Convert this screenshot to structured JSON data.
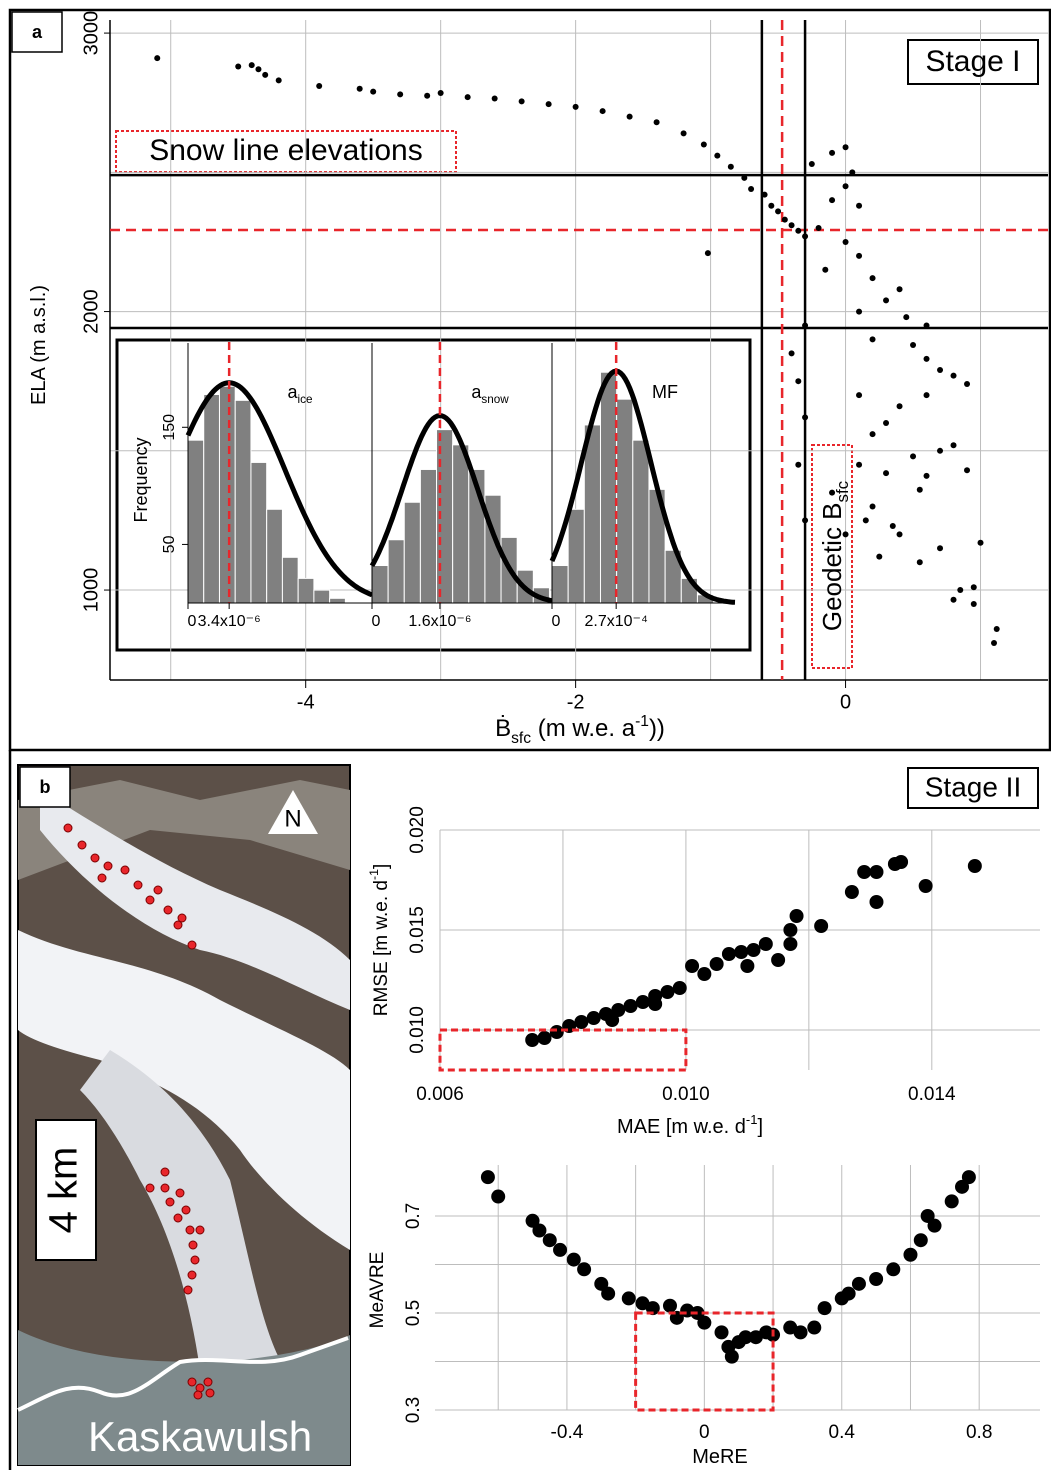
{
  "panel_labels": [
    "a",
    "b"
  ],
  "map": {
    "north": "N",
    "scale": "4 km",
    "glacier": "Kaskawulsh"
  },
  "chart_data": [
    {
      "type": "scatter",
      "color": "#000000",
      "x": [
        -5.1,
        -4.5,
        -4.4,
        -4.35,
        -4.3,
        -4.2,
        -3.9,
        -3.6,
        -3.5,
        -3.3,
        -3.1,
        -3.0,
        -2.8,
        -2.6,
        -2.4,
        -2.2,
        -2.0,
        -1.8,
        -1.6,
        -1.4,
        -1.2,
        -1.05,
        -0.95,
        -0.85,
        -0.75,
        -0.7,
        -0.6,
        -0.55,
        -0.5,
        -0.45,
        -0.4,
        -0.35,
        -0.3,
        -1.02,
        -0.25,
        -0.1,
        0,
        0.05,
        0,
        -0.1,
        0.1,
        -0.2,
        0,
        0.1,
        -0.15,
        0.2,
        0.4,
        0.3,
        0.1,
        0.45,
        -0.3,
        0.6,
        -0.4,
        0.2,
        0.5,
        0.6,
        0.7,
        0.8,
        0.9,
        0.6,
        -0.35,
        -0.3,
        0.4,
        0.2,
        0.1,
        0.3,
        0.5,
        0.6,
        0.7,
        0.8,
        0.9,
        0.55,
        0.2,
        0.15,
        0.35,
        0.4,
        -0.3,
        0,
        0.25,
        0.7,
        0.55,
        1.0,
        0.85,
        0.95,
        0.8,
        0.95,
        1.1,
        1.12,
        -0.35,
        -0.1,
        0.3,
        0.1
      ],
      "values": [
        2910,
        2880,
        2885,
        2870,
        2850,
        2830,
        2810,
        2800,
        2790,
        2780,
        2775,
        2785,
        2770,
        2765,
        2755,
        2745,
        2735,
        2720,
        2700,
        2680,
        2640,
        2600,
        2560,
        2520,
        2480,
        2440,
        2420,
        2380,
        2360,
        2330,
        2310,
        2290,
        2270,
        2210,
        2530,
        2570,
        2590,
        2500,
        2450,
        2400,
        2380,
        2300,
        2250,
        2200,
        2150,
        2120,
        2080,
        2040,
        2000,
        1980,
        1950,
        1950,
        1850,
        1900,
        1880,
        1830,
        1790,
        1770,
        1740,
        1700,
        1750,
        1620,
        1660,
        1560,
        1450,
        1420,
        1480,
        1410,
        1500,
        1520,
        1430,
        1360,
        1300,
        1250,
        1230,
        1200,
        1250,
        1200,
        1120,
        1150,
        1100,
        1170,
        1000,
        1010,
        965,
        950,
        810,
        860,
        1450,
        1350,
        1600,
        1700
      ],
      "xlim": [
        -5.45,
        1.5
      ],
      "ylim": [
        677,
        3047
      ],
      "xticks": [
        -4,
        -2,
        0
      ],
      "yticks": [
        1000,
        2000,
        3000
      ],
      "x_minor_ticks": [
        -5,
        -3,
        -1,
        1
      ],
      "y_minor_ticks": [
        1500,
        2500
      ],
      "x_label": [
        {
          "text": "Ḃ"
        },
        {
          "text": "sfc",
          "style": "sub"
        },
        {
          "text": " (m w.e. a"
        },
        {
          "text": "-1",
          "style": "sup"
        },
        {
          "text": "))"
        }
      ],
      "y_label": [
        {
          "text": "ELA (m a.s.l.)"
        }
      ],
      "vlines": [
        {
          "value": -0.62,
          "color": "#000000",
          "style": "solid"
        },
        {
          "value": -0.47,
          "color": "#e8262b",
          "style": "dashed"
        },
        {
          "value": -0.3,
          "color": "#000000",
          "style": "solid"
        }
      ],
      "hlines": [
        {
          "value": 2490,
          "color": "#000000",
          "style": "solid"
        },
        {
          "value": 2293,
          "color": "#e8262b",
          "style": "dashed"
        },
        {
          "value": 1941,
          "color": "#000000",
          "style": "solid"
        }
      ],
      "annotations": {
        "stage": "Stage I",
        "snow_line": "Snow line elevations",
        "geodetic": [
          {
            "text": "Geodetic B"
          },
          {
            "text": "sfc",
            "style": "sub"
          }
        ]
      }
    },
    {
      "type": "histogram",
      "color": "#808080",
      "fit_color": "#000000",
      "mean_color": "#e8262b",
      "title": [
        {
          "text": "a"
        },
        {
          "text": "ice",
          "style": "sub"
        }
      ],
      "bins": [
        0,
        1.3e-06,
        2.6e-06,
        3.9e-06,
        5.2e-06,
        6.5e-06,
        7.8e-06,
        9.1e-06,
        1.04e-05,
        1.17e-05,
        1.3e-05
      ],
      "counts": [
        139,
        178,
        185,
        173,
        120,
        80,
        39,
        21,
        11,
        4
      ],
      "xlim": [
        0,
        1.52e-05
      ],
      "ylim": [
        0,
        210
      ],
      "xticks": [
        0,
        {
          "value": 3.4e-06,
          "label": "3.4x10⁻⁶"
        }
      ],
      "yticks": [
        50,
        150
      ],
      "y_label": [
        {
          "text": "Frequency"
        }
      ],
      "fit": {
        "mean": 3.4e-06,
        "sd": 4.6e-06,
        "peak": 188
      }
    },
    {
      "type": "histogram",
      "color": "#808080",
      "fit_color": "#000000",
      "mean_color": "#e8262b",
      "title": [
        {
          "text": "a"
        },
        {
          "text": "snow",
          "style": "sub"
        }
      ],
      "bins": [
        0,
        3.8e-07,
        7.6e-07,
        1.14e-06,
        1.52e-06,
        1.9e-06,
        2.28e-06,
        2.66e-06,
        3.04e-06,
        3.42e-06,
        3.8e-06,
        4.18e-06
      ],
      "counts": [
        32,
        54,
        86,
        114,
        148,
        135,
        114,
        92,
        56,
        28,
        13
      ],
      "xlim": [
        0,
        4.24e-06
      ],
      "ylim": [
        0,
        210
      ],
      "xticks": [
        0,
        {
          "value": 1.6e-06,
          "label": "1.6x10⁻⁶"
        }
      ],
      "fit": {
        "mean": 1.6e-06,
        "sd": 8.9e-07,
        "peak": 160
      }
    },
    {
      "type": "histogram",
      "color": "#808080",
      "fit_color": "#000000",
      "mean_color": "#e8262b",
      "title": [
        {
          "text": "MF"
        }
      ],
      "bins": [
        0,
        6.8e-05,
        0.000136,
        0.000204,
        0.000272,
        0.00034,
        0.000408,
        0.000476,
        0.000544,
        0.000612,
        0.00068
      ],
      "counts": [
        32,
        80,
        152,
        197,
        174,
        139,
        97,
        45,
        21,
        7
      ],
      "xlim": [
        0,
        0.00077
      ],
      "ylim": [
        0,
        210
      ],
      "xticks": [
        0,
        {
          "value": 0.00027,
          "label": "2.7x10⁻⁴"
        }
      ],
      "fit": {
        "mean": 0.00027,
        "sd": 0.000146,
        "peak": 198
      }
    },
    {
      "type": "scatter",
      "color": "#000000",
      "x": [
        0.0075,
        0.0077,
        0.0079,
        0.0081,
        0.0083,
        0.0085,
        0.0087,
        0.0089,
        0.0091,
        0.0093,
        0.0095,
        0.0097,
        0.0099,
        0.0101,
        0.0103,
        0.0105,
        0.0107,
        0.0109,
        0.0111,
        0.0113,
        0.0115,
        0.0117,
        0.0118,
        0.0117,
        0.0122,
        0.0127,
        0.0129,
        0.0131,
        0.0131,
        0.0134,
        0.0135,
        0.0139,
        0.0147,
        0.011,
        0.0095,
        0.0088
      ],
      "values": [
        0.0095,
        0.0096,
        0.0099,
        0.0102,
        0.0104,
        0.0106,
        0.0108,
        0.011,
        0.0112,
        0.0114,
        0.0117,
        0.0119,
        0.0121,
        0.0132,
        0.0128,
        0.0133,
        0.0138,
        0.0139,
        0.014,
        0.0143,
        0.0135,
        0.015,
        0.0157,
        0.0143,
        0.0152,
        0.0169,
        0.0179,
        0.0164,
        0.0179,
        0.0183,
        0.0184,
        0.0172,
        0.0182,
        0.0132,
        0.0113,
        0.0105
      ],
      "xlim": [
        0.006,
        0.01576
      ],
      "ylim": [
        0.008,
        0.02
      ],
      "xticks": [
        0.006,
        {
          "value": 0.01,
          "label": "0.010"
        },
        0.014
      ],
      "yticks": [
        {
          "value": 0.01,
          "label": "0.010"
        },
        0.015,
        {
          "value": 0.02,
          "label": "0.020"
        }
      ],
      "x_minor_ticks": [
        0.008,
        0.012
      ],
      "x_label": [
        {
          "text": "MAE [m w.e. d"
        },
        {
          "text": "-1",
          "style": "sup"
        },
        {
          "text": "]"
        }
      ],
      "y_label": [
        {
          "text": "RMSE [m w.e. d"
        },
        {
          "text": "-1",
          "style": "sup"
        },
        {
          "text": "]"
        }
      ],
      "highlight": {
        "x": [
          0.006,
          0.01
        ],
        "y": [
          0.008,
          0.01
        ],
        "color": "#e8262b"
      },
      "annotations": {
        "stage": "Stage II"
      }
    },
    {
      "type": "scatter",
      "color": "#000000",
      "x": [
        -0.63,
        -0.6,
        -0.5,
        -0.48,
        -0.45,
        -0.42,
        -0.38,
        -0.35,
        -0.3,
        -0.28,
        -0.22,
        -0.18,
        -0.15,
        -0.1,
        -0.05,
        -0.02,
        0,
        0.05,
        0.07,
        0.1,
        0.15,
        0.18,
        0.2,
        0.25,
        0.28,
        0.32,
        0.35,
        0.4,
        0.42,
        0.45,
        0.5,
        0.55,
        0.6,
        0.63,
        0.65,
        0.67,
        0.72,
        0.75,
        0.77,
        0.08,
        0.12,
        -0.08
      ],
      "values": [
        0.78,
        0.74,
        0.69,
        0.67,
        0.65,
        0.63,
        0.61,
        0.59,
        0.56,
        0.54,
        0.53,
        0.52,
        0.51,
        0.515,
        0.505,
        0.5,
        0.48,
        0.46,
        0.43,
        0.44,
        0.45,
        0.46,
        0.455,
        0.47,
        0.46,
        0.47,
        0.51,
        0.53,
        0.54,
        0.56,
        0.57,
        0.59,
        0.62,
        0.65,
        0.7,
        0.68,
        0.73,
        0.76,
        0.78,
        0.41,
        0.45,
        0.49
      ],
      "xlim": [
        -0.784,
        0.977
      ],
      "ylim": [
        0.3,
        0.805
      ],
      "xticks": [
        -0.4,
        0,
        0.4,
        0.8
      ],
      "yticks": [
        0.3,
        0.5,
        0.7
      ],
      "x_minor_ticks": [
        -0.6,
        -0.2,
        0.2,
        0.6
      ],
      "y_minor_ticks": [
        0.4,
        0.6
      ],
      "x_label": [
        {
          "text": "MeRE"
        }
      ],
      "y_label": [
        {
          "text": "MeAVRE"
        }
      ],
      "highlight": {
        "x": [
          -0.2,
          0.2
        ],
        "y": [
          0.3,
          0.5
        ],
        "color": "#e8262b"
      }
    }
  ]
}
